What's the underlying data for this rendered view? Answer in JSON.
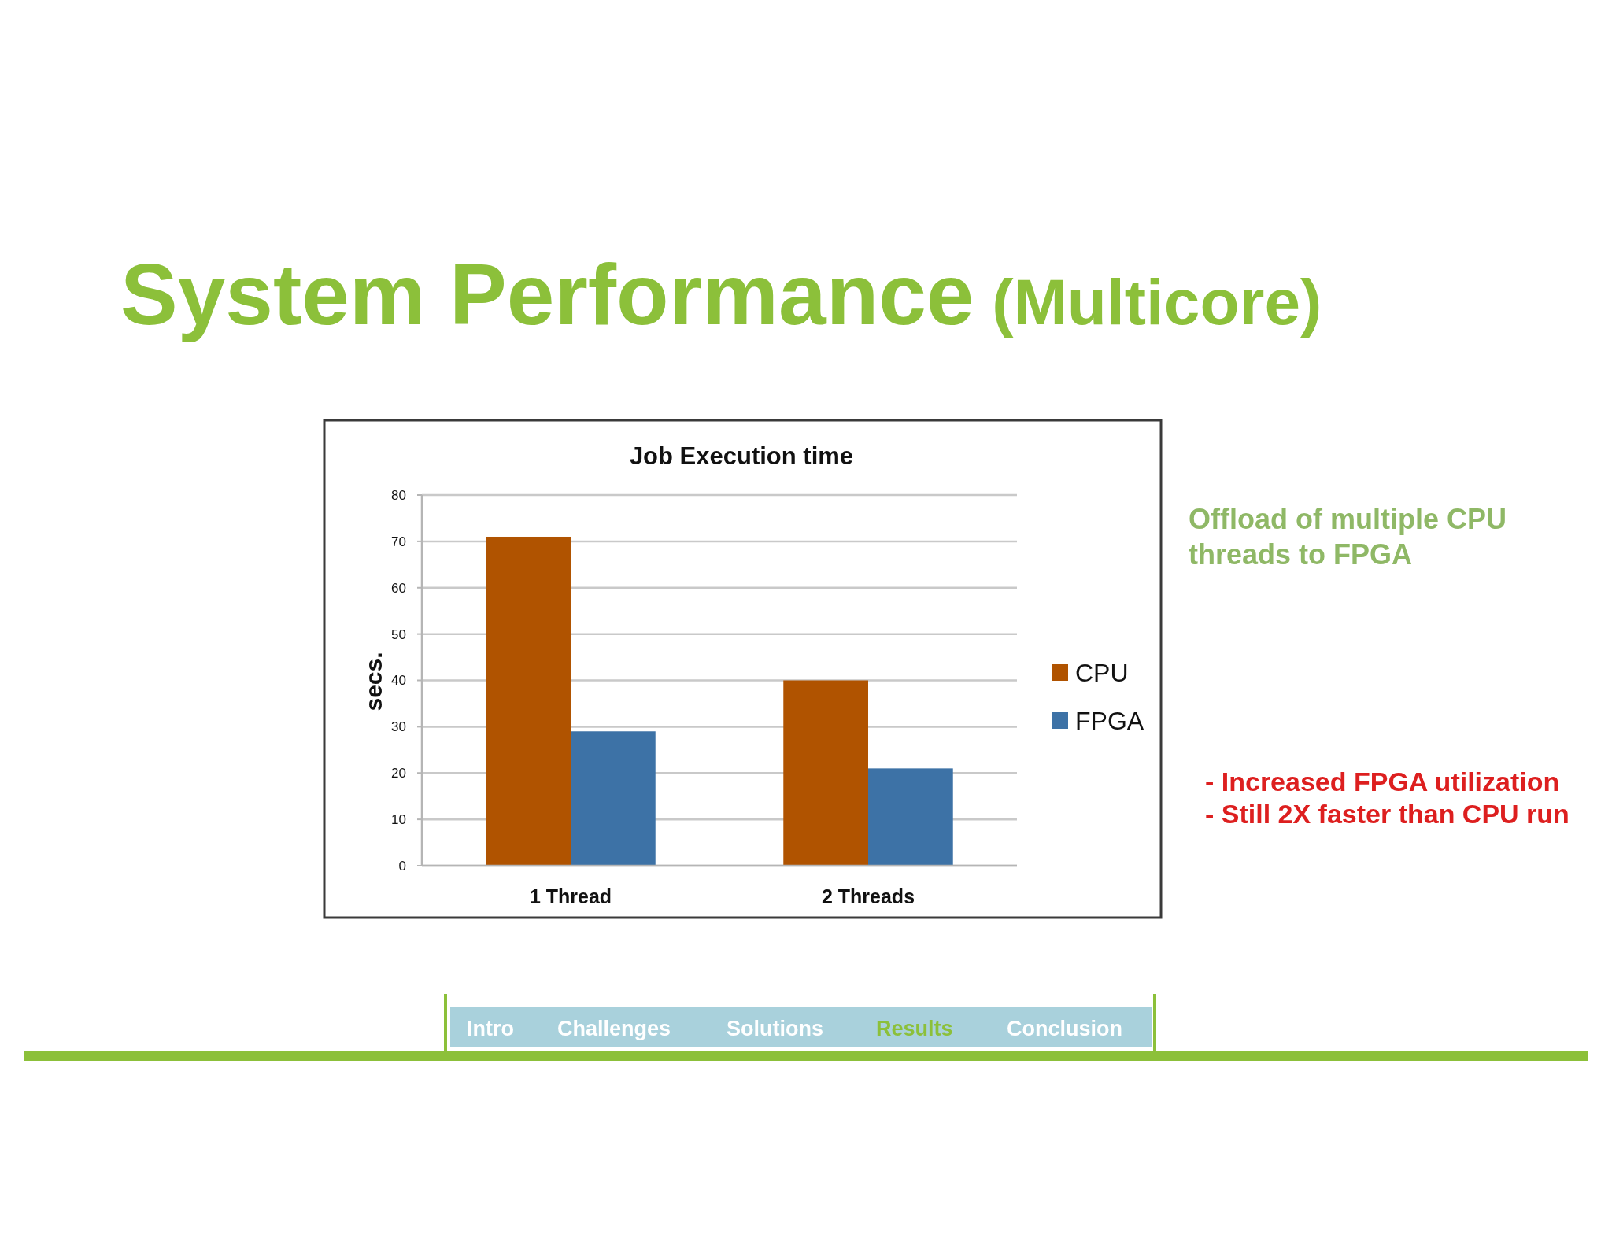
{
  "chart_data": {
    "type": "bar",
    "title": "System Performance (Multicore)",
    "subtitle": "Job Execution time",
    "ylabel": "secs.",
    "categories": [
      "1 Thread",
      "2 Threads"
    ],
    "series": [
      {
        "name": "CPU",
        "color": "#b05300",
        "values": [
          71,
          40
        ]
      },
      {
        "name": "FPGA",
        "color": "#3d72a6",
        "values": [
          29,
          21
        ]
      }
    ],
    "ylim": [
      0,
      80
    ],
    "yticks": [
      0,
      10,
      20,
      30,
      40,
      50,
      60,
      70,
      80
    ],
    "grid": "y",
    "legend": "right",
    "annotations": [
      "Offload of multiple CPU threads to FPGA",
      "- Increased FPGA utilization",
      "- Still 2X faster than CPU run",
      "Intro",
      "Challenges",
      "Solutions",
      "Results",
      "Conclusion"
    ]
  }
}
